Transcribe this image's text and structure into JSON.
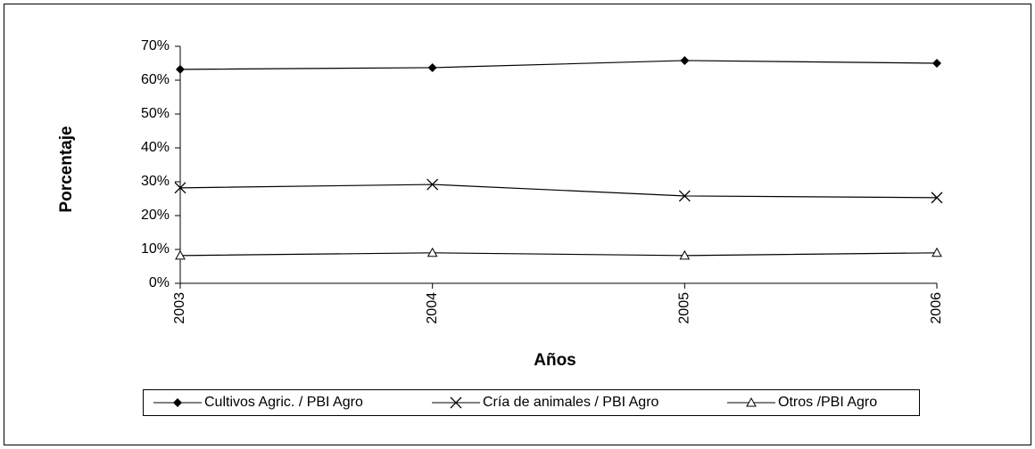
{
  "chart_data": {
    "type": "line",
    "x_label": "Años",
    "y_label": "Porcentaje",
    "categories": [
      "2003",
      "2004",
      "2005",
      "2006"
    ],
    "series": [
      {
        "name": "Cultivos Agric. / PBI Agro",
        "color": "#000000",
        "marker": "diamond",
        "values": [
          63.2,
          63.7,
          65.8,
          65
        ]
      },
      {
        "name": "Cría de animales / PBI Agro",
        "color": "#000000",
        "marker": "x",
        "values": [
          28.2,
          29.2,
          25.8,
          25.3
        ]
      },
      {
        "name": "Otros /PBI Agro",
        "color": "#000000",
        "marker": "triangle",
        "values": [
          8.2,
          9,
          8.2,
          9
        ]
      }
    ],
    "ylim": [
      0,
      70
    ],
    "yticks": [
      {
        "value": 0,
        "label": "0%"
      },
      {
        "value": 10,
        "label": "10%"
      },
      {
        "value": 20,
        "label": "20%"
      },
      {
        "value": 30,
        "label": "30%"
      },
      {
        "value": 40,
        "label": "40%"
      },
      {
        "value": 50,
        "label": "50%"
      },
      {
        "value": 60,
        "label": "60%"
      },
      {
        "value": 70,
        "label": "70%"
      }
    ],
    "grid": false,
    "legend": "bottom"
  }
}
